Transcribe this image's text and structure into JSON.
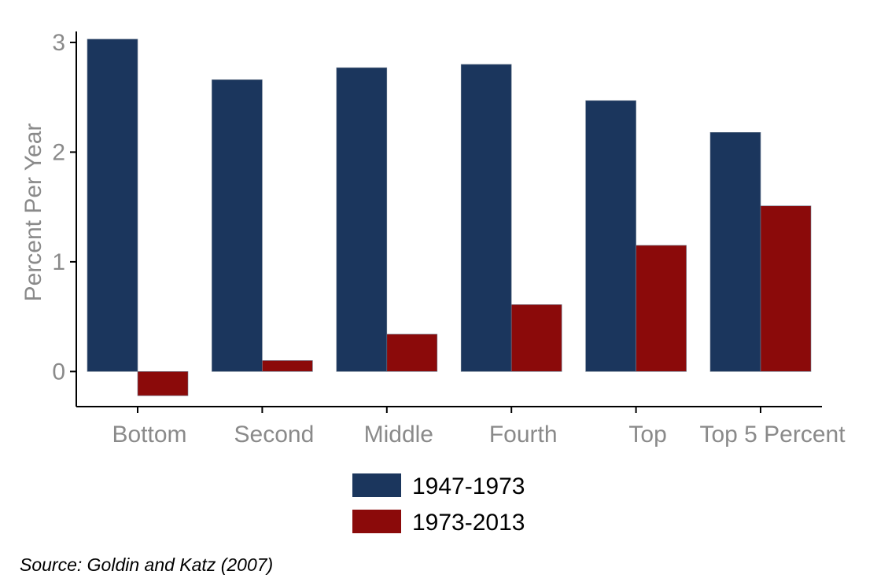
{
  "chart_data": {
    "type": "bar",
    "categories": [
      "Bottom",
      "Second",
      "Middle",
      "Fourth",
      "Top",
      "Top 5 Percent"
    ],
    "series": [
      {
        "name": "1947-1973",
        "color": "#1b365d",
        "values": [
          3.03,
          2.66,
          2.77,
          2.8,
          2.47,
          2.18
        ]
      },
      {
        "name": "1973-2013",
        "color": "#8b0a0a",
        "values": [
          -0.22,
          0.1,
          0.34,
          0.61,
          1.15,
          1.51
        ]
      }
    ],
    "title": "",
    "xlabel": "",
    "ylabel": "Percent Per Year",
    "y_ticks": [
      0,
      1,
      2,
      3
    ],
    "ylim": [
      -0.32,
      3.1
    ],
    "grid": false,
    "legend_position": "bottom"
  },
  "source_note": "Source: Goldin and Katz (2007)"
}
